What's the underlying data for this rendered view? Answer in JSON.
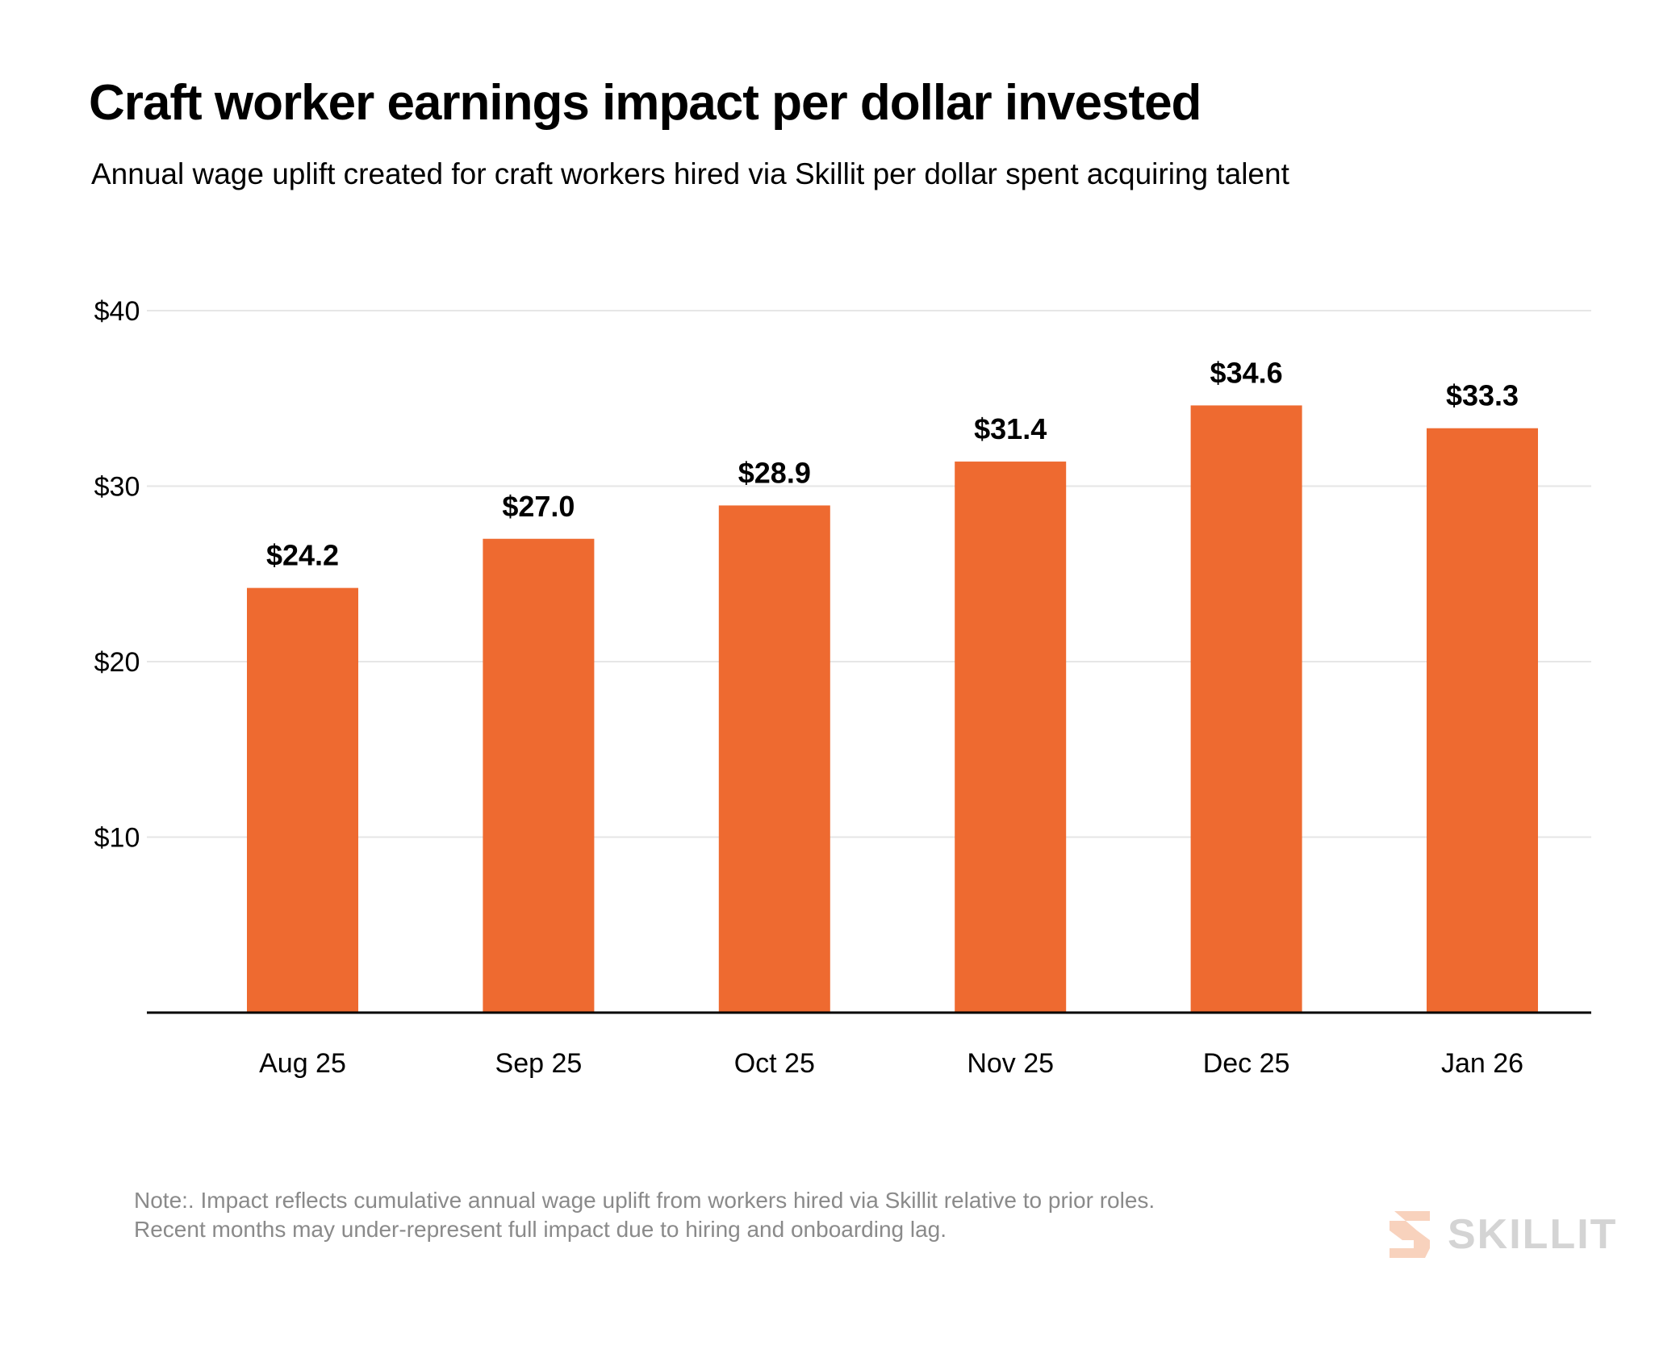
{
  "title": "Craft worker earnings impact per dollar invested",
  "subtitle": "Annual wage uplift created for craft workers hired via Skillit per dollar spent acquiring talent",
  "note": {
    "line1": "Note:. Impact reflects cumulative annual wage uplift from workers hired via Skillit relative to prior roles.",
    "line2": "Recent months may under-represent full impact due to hiring and onboarding lag."
  },
  "brand": {
    "name": "SKILLIT",
    "icon": "skillit-s-logo-icon",
    "icon_color": "#f8d2bd"
  },
  "colors": {
    "bar": "#ee6a30",
    "gridline": "#e6e6e6",
    "axis": "#000000"
  },
  "chart_data": {
    "type": "bar",
    "title": "Craft worker earnings impact per dollar invested",
    "subtitle": "Annual wage uplift created for craft workers hired via Skillit per dollar spent acquiring talent",
    "xlabel": "",
    "ylabel": "",
    "categories": [
      "Aug 25",
      "Sep 25",
      "Oct 25",
      "Nov 25",
      "Dec 25",
      "Jan 26"
    ],
    "values": [
      24.2,
      27.0,
      28.9,
      31.4,
      34.6,
      33.3
    ],
    "value_labels": [
      "$24.2",
      "$27.0",
      "$28.9",
      "$31.4",
      "$34.6",
      "$33.3"
    ],
    "yticks": [
      10,
      20,
      30,
      40
    ],
    "ytick_labels": [
      "$10",
      "$20",
      "$30",
      "$40"
    ],
    "ylim": [
      0,
      40
    ],
    "grid": true,
    "legend": "none"
  }
}
